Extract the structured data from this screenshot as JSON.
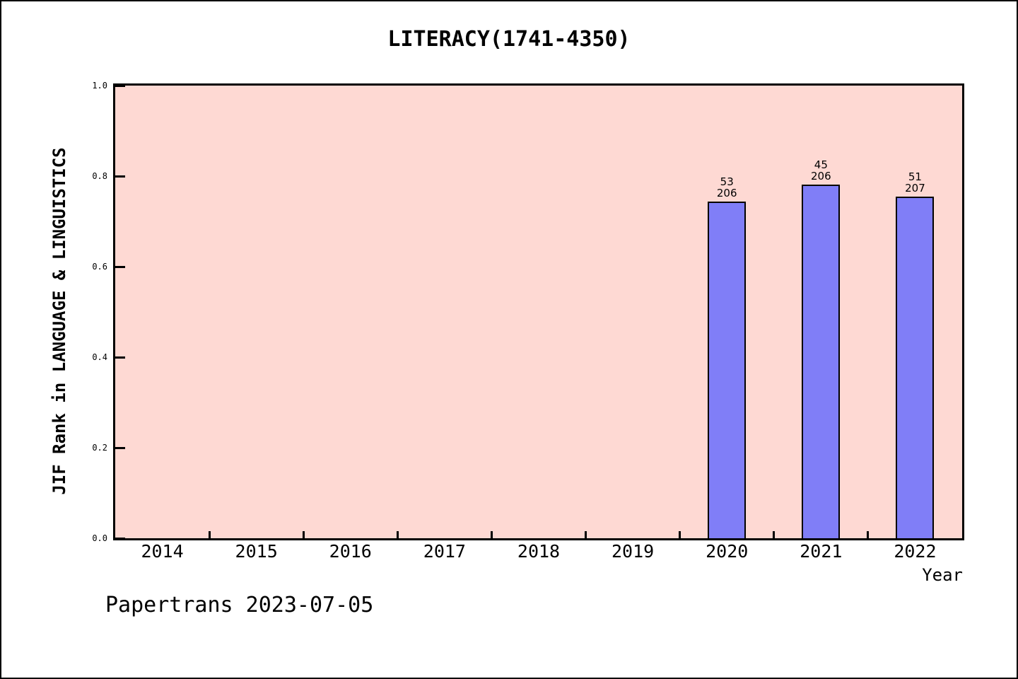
{
  "title": "LITERACY(1741-4350)",
  "footer": "Papertrans 2023-07-05",
  "colors": {
    "plot_background": "#fed9d3",
    "bar_fill": "#807ef7",
    "bar_edge": "#000000",
    "axis_frame": "#000000",
    "text": "#000000"
  },
  "chart_data": {
    "type": "bar",
    "title": "LITERACY(1741-4350)",
    "xlabel": "Year",
    "ylabel": "JIF Rank in LANGUAGE & LINGUISTICS",
    "categories": [
      "2014",
      "2015",
      "2016",
      "2017",
      "2018",
      "2019",
      "2020",
      "2021",
      "2022"
    ],
    "values": [
      null,
      null,
      null,
      null,
      null,
      null,
      0.743,
      0.782,
      0.754
    ],
    "annotations": [
      null,
      null,
      null,
      null,
      null,
      null,
      {
        "rank": "53",
        "total": "206"
      },
      {
        "rank": "45",
        "total": "206"
      },
      {
        "rank": "51",
        "total": "207"
      }
    ],
    "ylim": [
      0,
      1
    ],
    "yticks": [
      "0.0",
      "0.2",
      "0.4",
      "0.6",
      "0.8",
      "1.0"
    ],
    "grid": false,
    "legend": null
  }
}
